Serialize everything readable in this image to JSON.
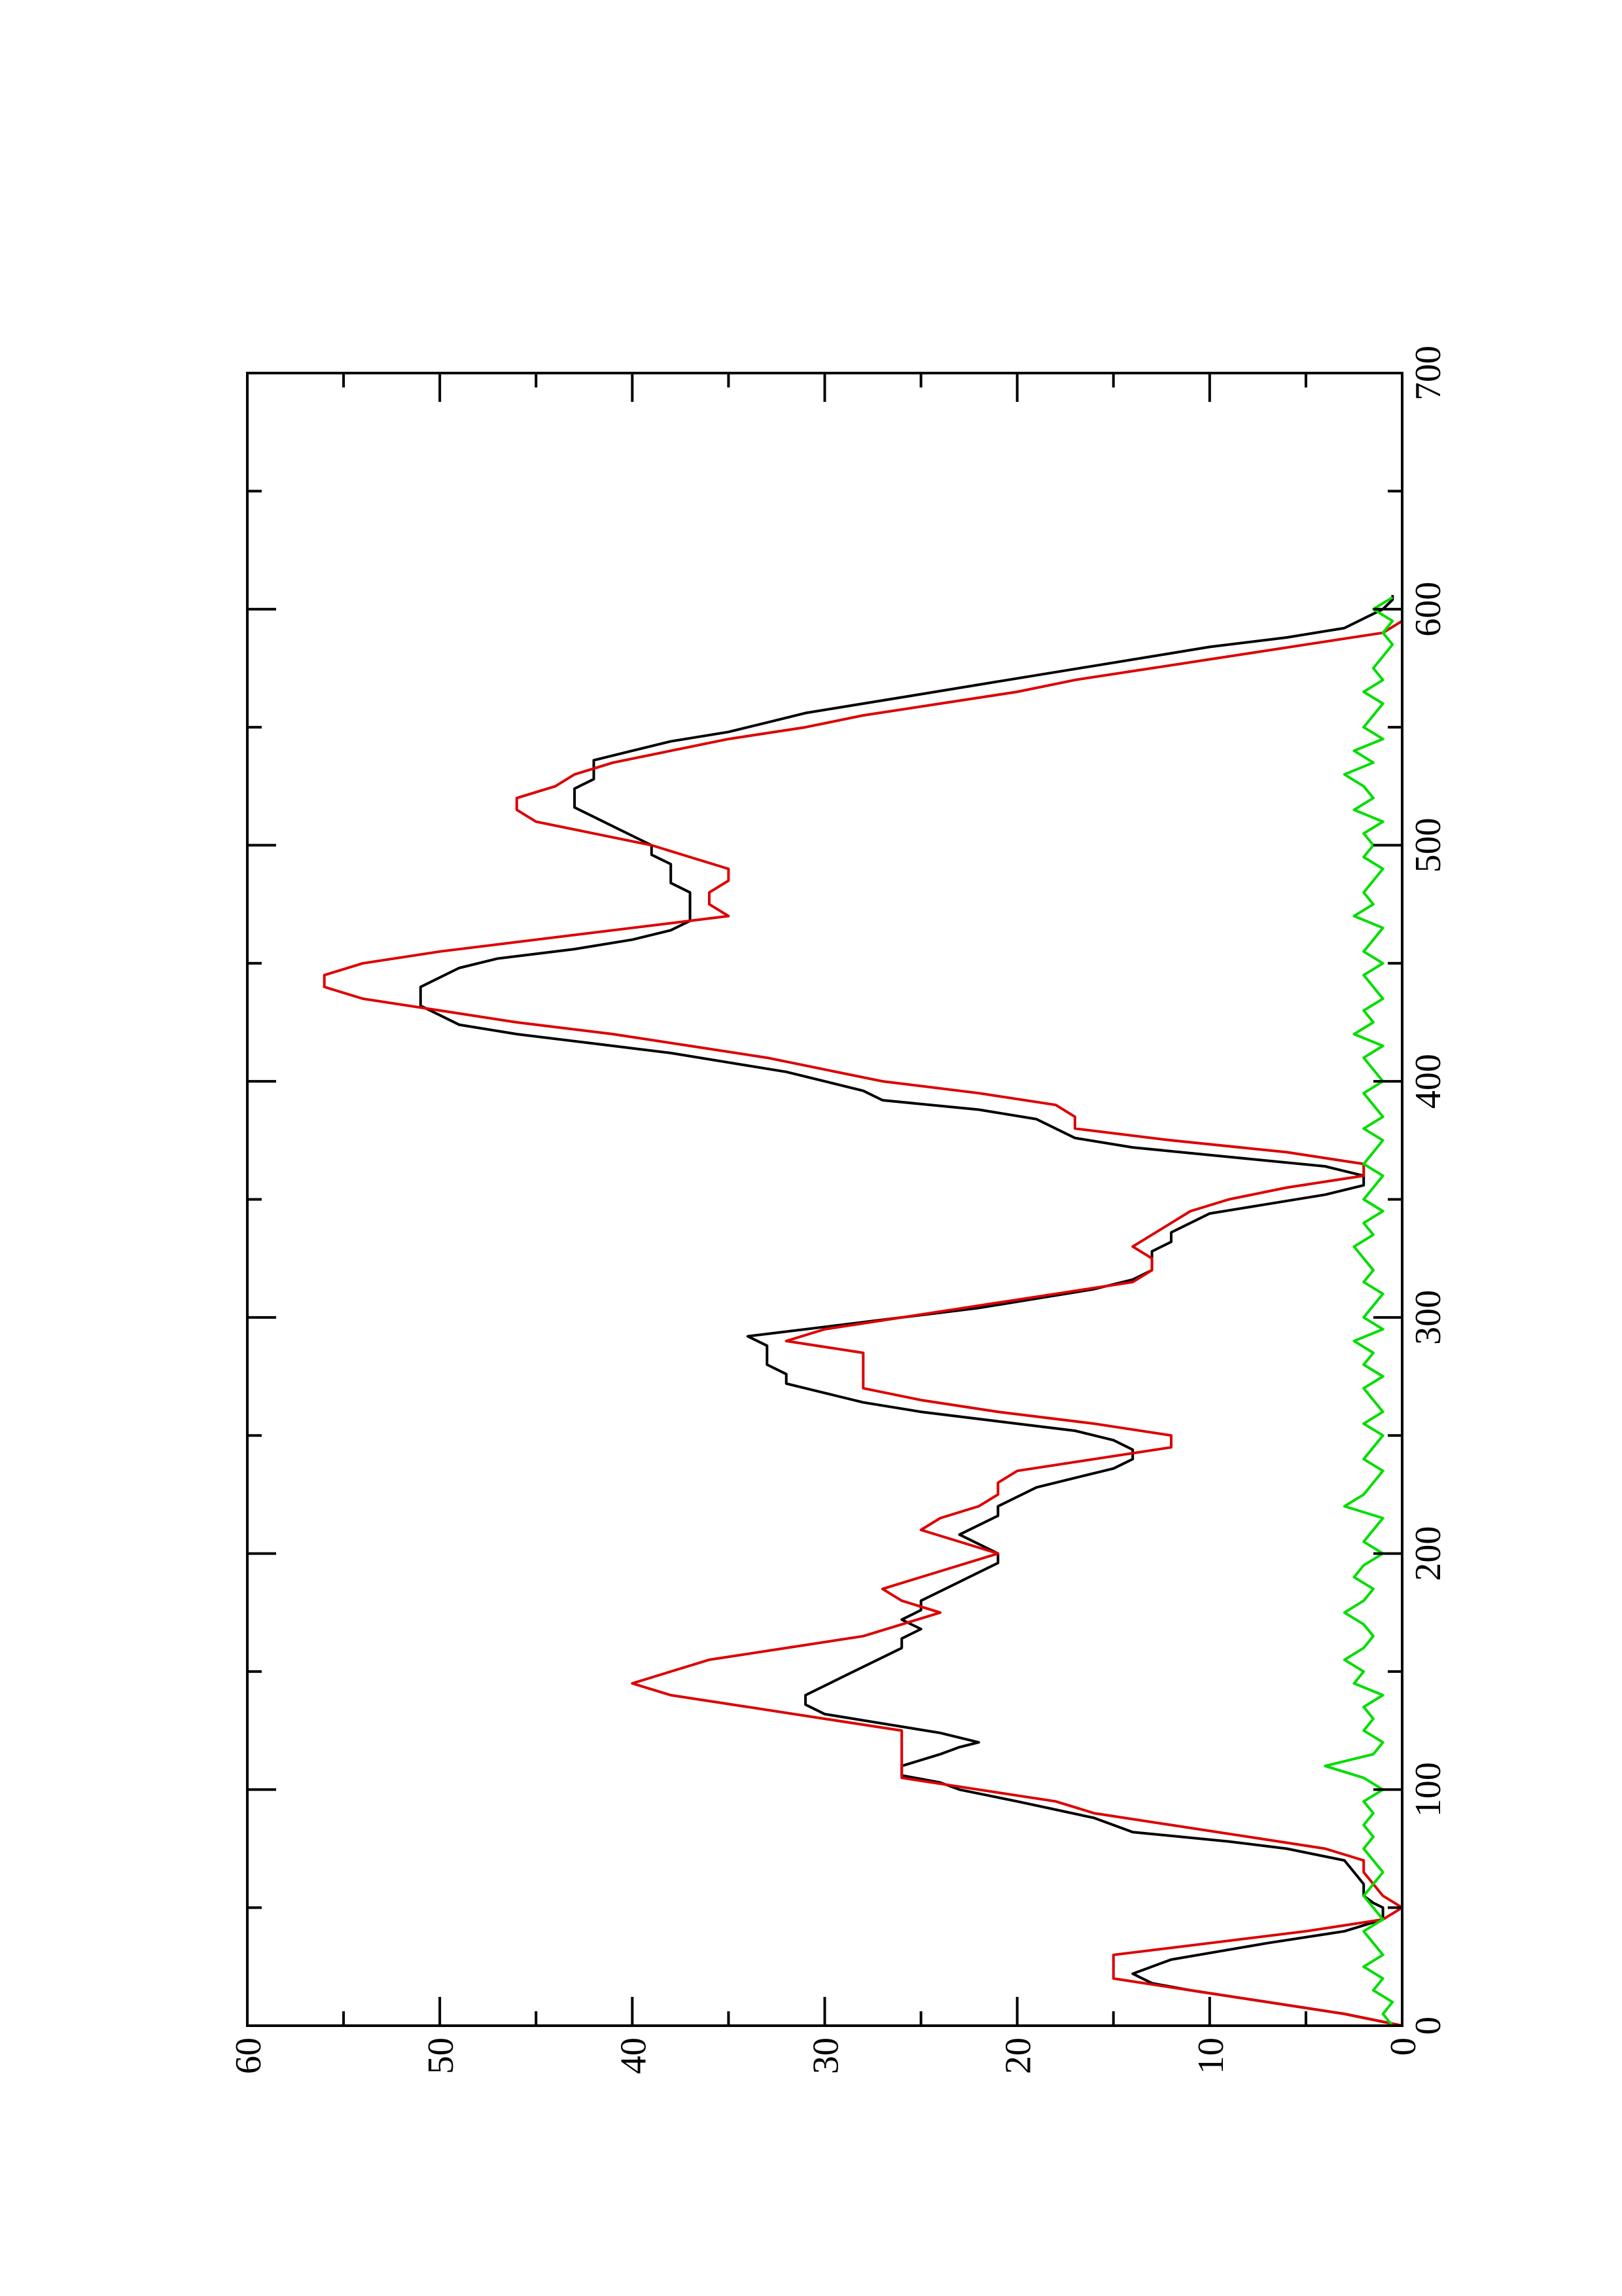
{
  "chart_data": {
    "type": "line",
    "title": "",
    "xlabel": "",
    "ylabel": "",
    "xlim": [
      0,
      700
    ],
    "ylim": [
      0,
      60
    ],
    "x_ticks": [
      0,
      100,
      200,
      300,
      400,
      500,
      600,
      700
    ],
    "x_minor_ticks": [
      50,
      150,
      250,
      350,
      450,
      550,
      650
    ],
    "y_ticks": [
      0,
      10,
      20,
      30,
      40,
      50,
      60
    ],
    "y_minor_ticks": [
      5,
      15,
      25,
      35,
      45,
      55
    ],
    "grid": false,
    "orientation": "rotated-90-ccw",
    "colors": {
      "series_black": "#000000",
      "series_red": "#dd0000",
      "series_green": "#00dd00",
      "axis": "#000000"
    },
    "series": [
      {
        "color": "#000000",
        "x": [
          0,
          5,
          10,
          15,
          18,
          22,
          28,
          35,
          40,
          45,
          48,
          50,
          52,
          55,
          60,
          65,
          70,
          75,
          78,
          82,
          88,
          95,
          100,
          103,
          106,
          110,
          115,
          118,
          120,
          124,
          128,
          132,
          136,
          140,
          144,
          148,
          152,
          156,
          160,
          164,
          168,
          172,
          176,
          180,
          184,
          188,
          192,
          196,
          200,
          204,
          208,
          212,
          216,
          220,
          224,
          228,
          232,
          236,
          240,
          244,
          248,
          252,
          256,
          260,
          264,
          268,
          272,
          276,
          280,
          284,
          288,
          292,
          296,
          300,
          304,
          308,
          312,
          316,
          320,
          324,
          328,
          332,
          336,
          340,
          344,
          348,
          352,
          356,
          360,
          364,
          368,
          372,
          376,
          380,
          384,
          388,
          392,
          396,
          400,
          404,
          408,
          412,
          416,
          420,
          424,
          428,
          432,
          436,
          440,
          444,
          448,
          452,
          456,
          460,
          464,
          468,
          472,
          476,
          480,
          484,
          488,
          492,
          496,
          500,
          504,
          508,
          512,
          516,
          520,
          524,
          528,
          532,
          536,
          540,
          544,
          548,
          552,
          556,
          560,
          564,
          568,
          572,
          576,
          580,
          584,
          588,
          592,
          596,
          600,
          604,
          606
        ],
        "y": [
          0,
          3,
          7,
          11,
          13,
          14,
          12,
          7,
          3,
          1,
          1,
          1,
          1.5,
          2,
          2,
          2.5,
          3,
          6,
          9,
          14,
          16,
          20,
          23,
          24,
          26,
          26,
          24,
          23,
          22,
          24,
          27,
          30,
          31,
          31,
          30,
          29,
          28,
          27,
          26,
          26,
          25,
          26,
          25,
          25,
          24,
          23,
          22,
          21,
          21,
          22,
          23,
          22,
          21,
          21,
          20,
          19,
          17,
          15,
          14,
          14,
          15,
          17,
          21,
          25,
          28,
          30,
          32,
          32,
          33,
          33,
          33,
          34,
          30,
          26,
          22,
          19,
          16,
          14,
          13,
          13,
          13,
          12,
          12,
          11,
          10,
          7,
          4,
          2,
          2,
          4,
          9,
          14,
          17,
          18,
          19,
          22,
          27,
          28,
          30,
          32,
          35,
          38,
          42,
          46,
          49,
          50,
          51,
          51,
          51,
          50,
          49,
          47,
          43,
          40,
          38,
          37,
          37,
          37,
          37,
          38,
          38,
          38,
          39,
          39,
          40,
          41,
          42,
          43,
          43,
          43,
          42,
          42,
          42,
          40,
          38,
          35,
          33,
          31,
          28,
          25,
          22,
          19,
          16,
          13,
          10,
          6,
          3,
          2,
          1,
          0.5,
          0.5
        ]
      },
      {
        "color": "#dd0000",
        "x": [
          0,
          5,
          10,
          15,
          20,
          25,
          30,
          35,
          40,
          45,
          50,
          55,
          60,
          65,
          70,
          75,
          80,
          85,
          90,
          95,
          100,
          105,
          110,
          115,
          120,
          125,
          130,
          135,
          140,
          145,
          150,
          155,
          160,
          165,
          170,
          175,
          180,
          185,
          190,
          195,
          200,
          205,
          210,
          215,
          220,
          225,
          230,
          235,
          240,
          245,
          250,
          255,
          260,
          265,
          270,
          275,
          280,
          285,
          290,
          295,
          300,
          305,
          310,
          315,
          320,
          325,
          330,
          335,
          340,
          345,
          350,
          355,
          360,
          365,
          370,
          375,
          380,
          385,
          390,
          395,
          400,
          405,
          410,
          415,
          420,
          425,
          430,
          435,
          440,
          445,
          450,
          455,
          460,
          465,
          470,
          475,
          480,
          485,
          490,
          495,
          500,
          505,
          510,
          515,
          520,
          525,
          530,
          535,
          540,
          545,
          550,
          555,
          560,
          565,
          570,
          575,
          580,
          585,
          590,
          595,
          600,
          605
        ],
        "y": [
          0,
          3,
          7,
          11,
          15,
          15,
          15,
          10,
          5,
          1,
          0,
          1,
          1.5,
          2,
          2,
          4,
          8,
          12,
          16,
          18,
          22,
          26,
          26,
          26,
          26,
          26,
          30,
          34,
          38,
          40,
          38,
          36,
          32,
          28,
          26,
          24,
          26,
          27,
          25,
          23,
          21,
          23,
          25,
          24,
          22,
          21,
          21,
          20,
          16,
          12,
          12,
          16,
          21,
          25,
          28,
          28,
          28,
          28,
          32,
          30,
          26,
          22,
          18,
          14,
          13,
          13,
          14,
          13,
          12,
          11,
          9,
          6,
          2,
          2,
          6,
          12,
          17,
          17,
          18,
          22,
          27,
          30,
          33,
          37,
          41,
          46,
          50,
          54,
          56,
          56,
          54,
          50,
          45,
          40,
          35,
          36,
          36,
          35,
          35,
          37,
          39,
          42,
          45,
          46,
          46,
          44,
          43,
          41,
          38,
          35,
          31,
          28,
          24,
          20,
          17,
          13,
          9,
          5,
          1,
          0,
          0,
          0
        ]
      },
      {
        "color": "#00dd00",
        "x": [
          0,
          5,
          10,
          15,
          20,
          25,
          30,
          35,
          40,
          45,
          50,
          55,
          60,
          65,
          70,
          75,
          80,
          85,
          90,
          95,
          100,
          105,
          110,
          115,
          120,
          125,
          130,
          135,
          140,
          145,
          150,
          155,
          160,
          165,
          170,
          175,
          180,
          185,
          190,
          195,
          200,
          205,
          210,
          215,
          220,
          225,
          230,
          235,
          240,
          245,
          250,
          255,
          260,
          265,
          270,
          275,
          280,
          285,
          290,
          295,
          300,
          305,
          310,
          315,
          320,
          325,
          330,
          335,
          340,
          345,
          350,
          355,
          360,
          365,
          370,
          375,
          380,
          385,
          390,
          395,
          400,
          405,
          410,
          415,
          420,
          425,
          430,
          435,
          440,
          445,
          450,
          455,
          460,
          465,
          470,
          475,
          480,
          485,
          490,
          495,
          500,
          505,
          510,
          515,
          520,
          525,
          530,
          535,
          540,
          545,
          550,
          555,
          560,
          565,
          570,
          575,
          580,
          585,
          590,
          595,
          600,
          605
        ],
        "y": [
          0.5,
          1,
          0.5,
          1.5,
          1,
          2,
          1,
          1.5,
          2,
          1,
          1.5,
          2,
          1.5,
          1,
          1.5,
          2,
          1.5,
          2,
          1.5,
          2,
          1,
          2,
          4,
          1.5,
          1,
          2,
          1.5,
          2,
          1,
          2.5,
          2,
          3,
          2,
          1.5,
          2,
          3,
          2,
          1.5,
          2.5,
          2,
          1,
          2,
          1.5,
          1,
          3,
          2,
          1.5,
          1,
          2,
          1.5,
          1,
          2,
          1,
          1.5,
          2,
          1,
          2,
          1.5,
          2.5,
          1,
          2,
          1.5,
          1,
          2,
          1.5,
          2,
          2.5,
          1.5,
          2,
          1,
          2,
          1.5,
          1,
          2,
          1.5,
          1,
          2,
          1,
          1.5,
          2,
          1,
          1.5,
          2,
          1,
          2.5,
          1.5,
          2,
          1,
          1.5,
          2,
          1,
          2,
          1.5,
          1,
          2.5,
          1.5,
          2,
          1.5,
          1,
          2,
          1.5,
          2,
          1,
          2.5,
          1.5,
          2,
          3,
          1.5,
          2.5,
          1,
          2,
          1.5,
          1,
          2,
          1,
          1.5,
          1,
          0.5,
          1,
          0.5,
          1.5,
          0.5
        ]
      }
    ]
  }
}
